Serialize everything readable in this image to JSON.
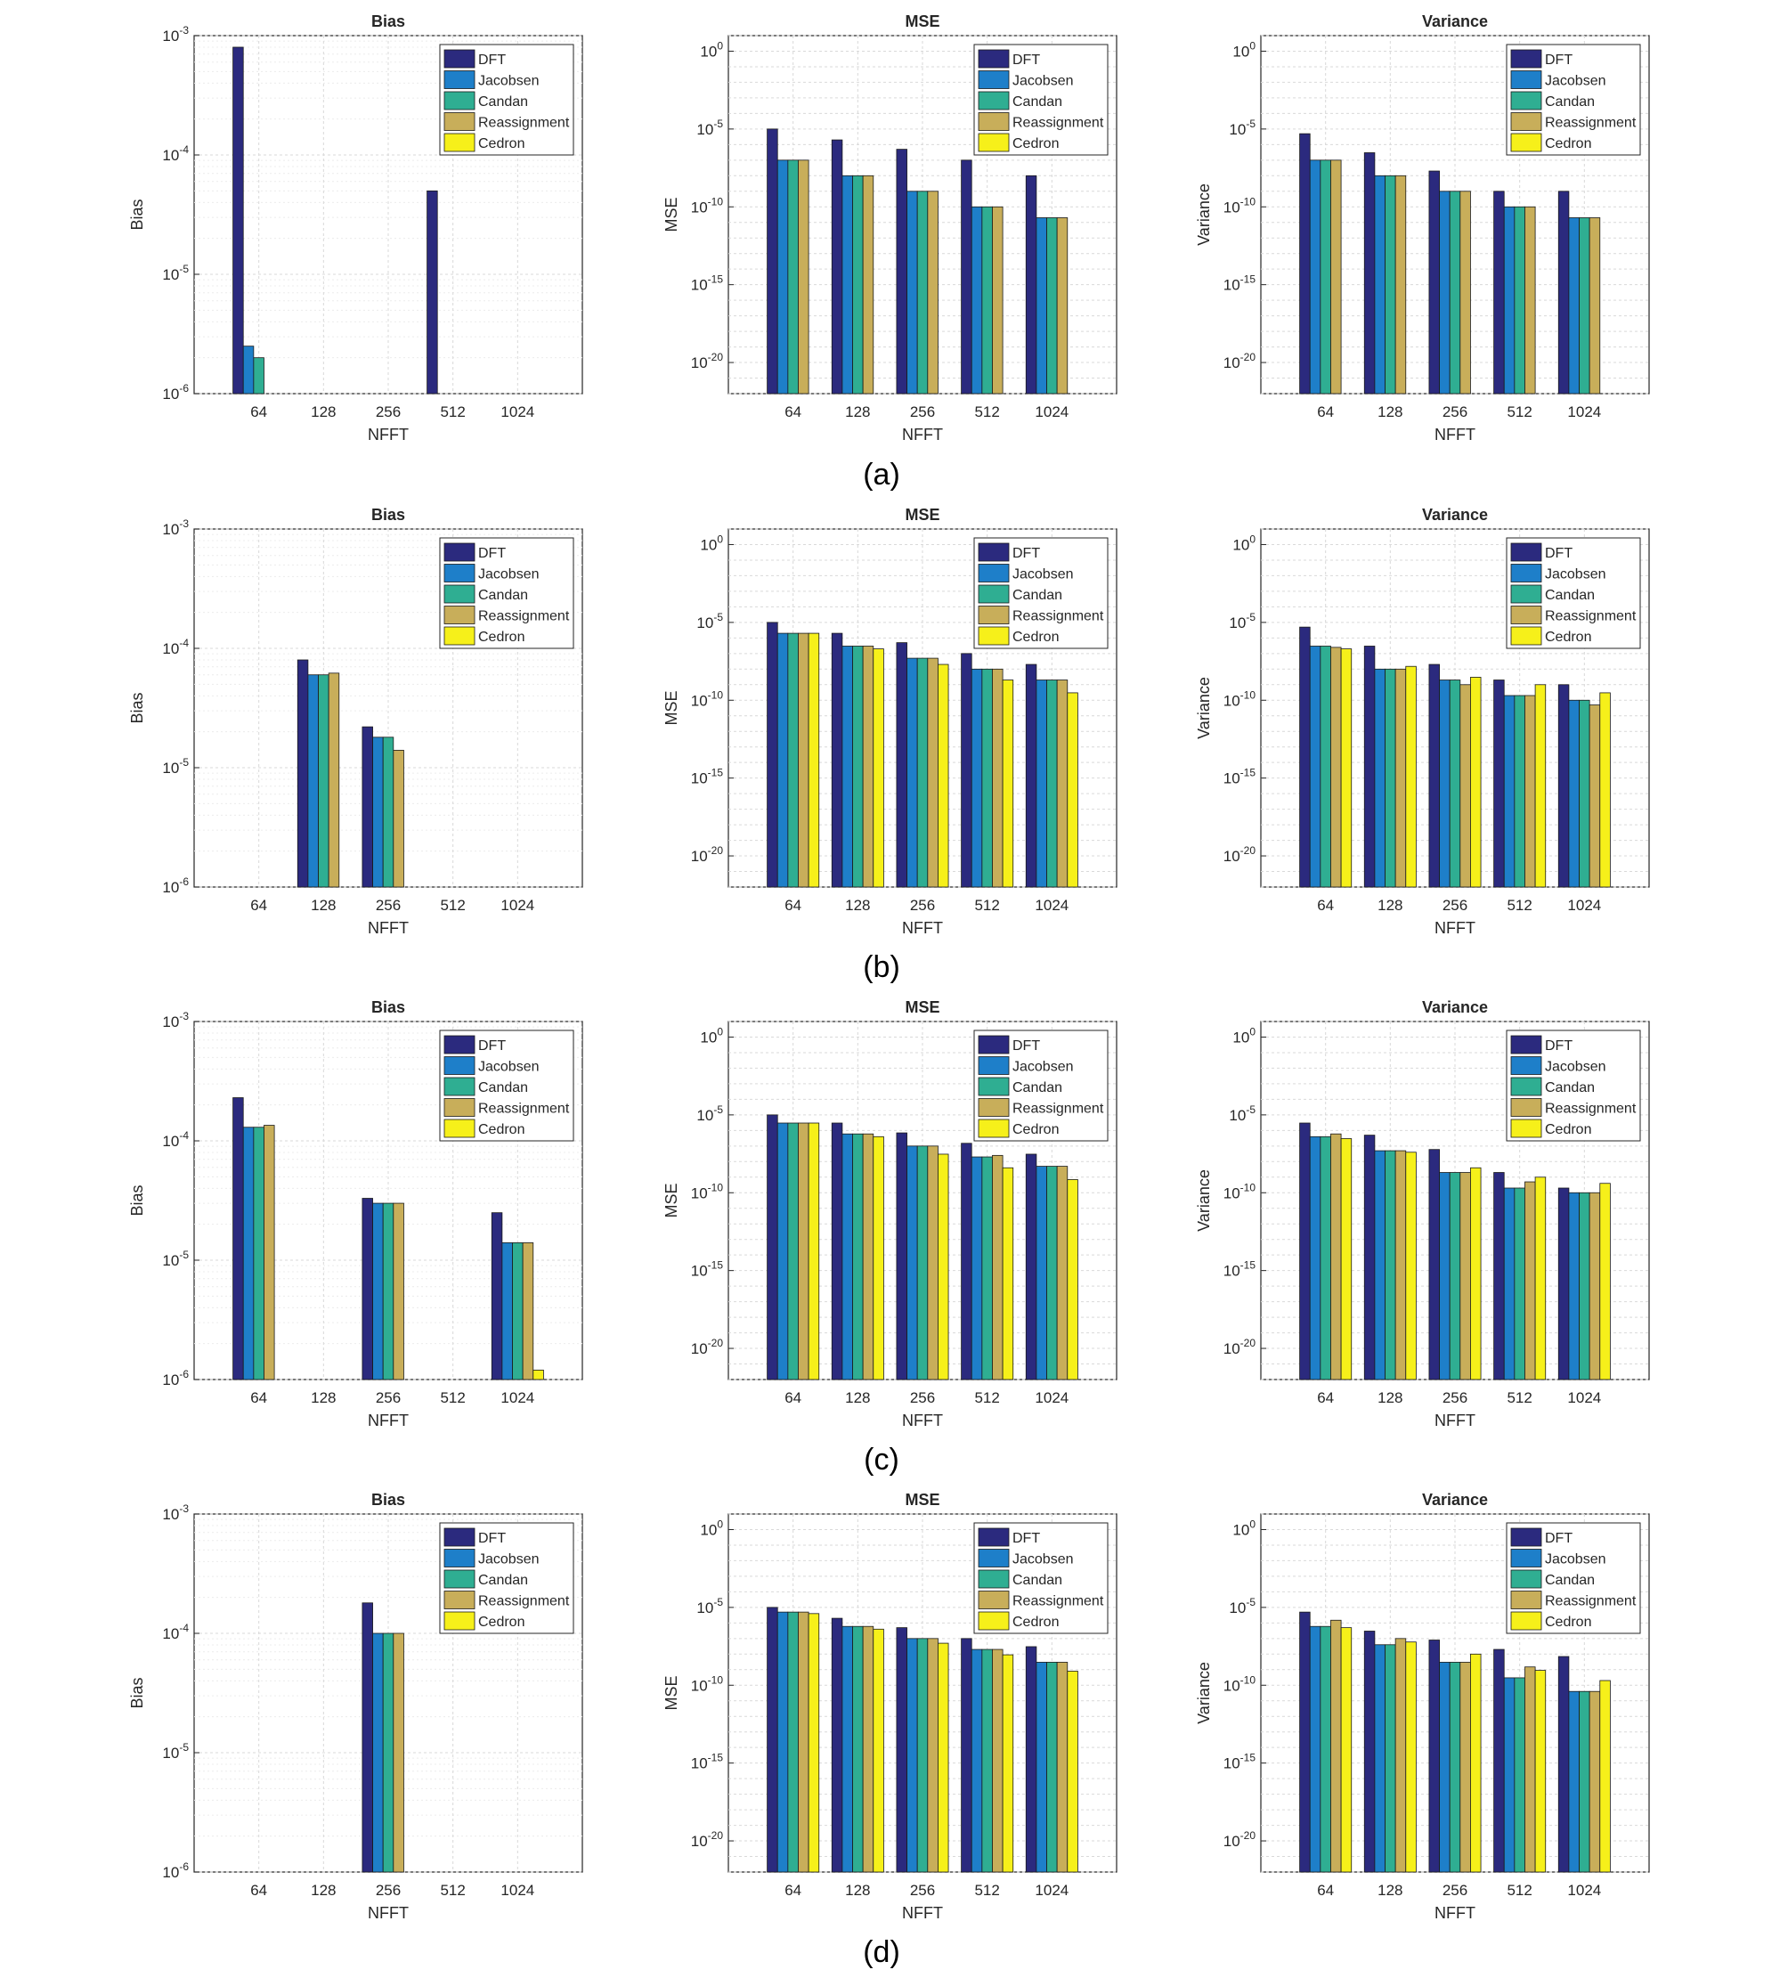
{
  "colors": {
    "DFT": "#2b2a7e",
    "Jacobsen": "#1e7fc9",
    "Candan": "#2fae92",
    "Reassignment": "#c8ae5a",
    "Cedron": "#f6f01a",
    "grid": "#d9d9d9",
    "axis": "#262626"
  },
  "legend_labels": [
    "DFT",
    "Jacobsen",
    "Candan",
    "Reassignment",
    "Cedron"
  ],
  "panel_labels": [
    "(a)",
    "(b)",
    "(c)",
    "(d)"
  ],
  "chart_data": [
    {
      "type": "bar",
      "panel": "(a)",
      "title": "Bias",
      "xlabel": "NFFT",
      "ylabel": "Bias",
      "scale": "log",
      "legend": "top-right",
      "grid": true,
      "categories": [
        "64",
        "128",
        "256",
        "512",
        "1024"
      ],
      "ylim": [
        1e-06,
        0.001
      ],
      "ytick_values": [
        1e-06,
        1e-05,
        0.0001,
        0.001
      ],
      "ytick_labels": [
        "10^-6",
        "10^-5",
        "10^-4",
        "10^-3"
      ],
      "series": [
        {
          "name": "DFT",
          "values": [
            0.0008,
            null,
            null,
            5e-05,
            null
          ]
        },
        {
          "name": "Jacobsen",
          "values": [
            2.5e-06,
            null,
            null,
            null,
            null
          ]
        },
        {
          "name": "Candan",
          "values": [
            2e-06,
            null,
            null,
            null,
            null
          ]
        },
        {
          "name": "Reassignment",
          "values": [
            null,
            null,
            null,
            null,
            null
          ]
        },
        {
          "name": "Cedron",
          "values": [
            null,
            null,
            null,
            null,
            null
          ]
        }
      ]
    },
    {
      "type": "bar",
      "panel": "(a)",
      "title": "MSE",
      "xlabel": "NFFT",
      "ylabel": "MSE",
      "scale": "log",
      "legend": "top-right",
      "grid": true,
      "categories": [
        "64",
        "128",
        "256",
        "512",
        "1024"
      ],
      "ylim": [
        1e-22,
        10.0
      ],
      "ytick_values": [
        1e-20,
        1e-15,
        1e-10,
        1e-05,
        1
      ],
      "ytick_labels": [
        "10^-20",
        "10^-15",
        "10^-10",
        "10^-5",
        "10^0"
      ],
      "series": [
        {
          "name": "DFT",
          "values": [
            1e-05,
            2e-06,
            5e-07,
            1e-07,
            1e-08
          ]
        },
        {
          "name": "Jacobsen",
          "values": [
            1e-07,
            1e-08,
            1e-09,
            1e-10,
            2e-11
          ]
        },
        {
          "name": "Candan",
          "values": [
            1e-07,
            1e-08,
            1e-09,
            1e-10,
            2e-11
          ]
        },
        {
          "name": "Reassignment",
          "values": [
            1e-07,
            1e-08,
            1e-09,
            1e-10,
            2e-11
          ]
        },
        {
          "name": "Cedron",
          "values": [
            null,
            null,
            null,
            null,
            null
          ]
        }
      ]
    },
    {
      "type": "bar",
      "panel": "(a)",
      "title": "Variance",
      "xlabel": "NFFT",
      "ylabel": "Variance",
      "scale": "log",
      "legend": "top-right",
      "grid": true,
      "categories": [
        "64",
        "128",
        "256",
        "512",
        "1024"
      ],
      "ylim": [
        1e-22,
        10.0
      ],
      "ytick_values": [
        1e-20,
        1e-15,
        1e-10,
        1e-05,
        1
      ],
      "ytick_labels": [
        "10^-20",
        "10^-15",
        "10^-10",
        "10^-5",
        "10^0"
      ],
      "series": [
        {
          "name": "DFT",
          "values": [
            5e-06,
            3e-07,
            2e-08,
            1e-09,
            1e-09
          ]
        },
        {
          "name": "Jacobsen",
          "values": [
            1e-07,
            1e-08,
            1e-09,
            1e-10,
            2e-11
          ]
        },
        {
          "name": "Candan",
          "values": [
            1e-07,
            1e-08,
            1e-09,
            1e-10,
            2e-11
          ]
        },
        {
          "name": "Reassignment",
          "values": [
            1e-07,
            1e-08,
            1e-09,
            1e-10,
            2e-11
          ]
        },
        {
          "name": "Cedron",
          "values": [
            null,
            null,
            null,
            null,
            null
          ]
        }
      ]
    },
    {
      "type": "bar",
      "panel": "(b)",
      "title": "Bias",
      "xlabel": "NFFT",
      "ylabel": "Bias",
      "scale": "log",
      "legend": "top-right",
      "grid": true,
      "categories": [
        "64",
        "128",
        "256",
        "512",
        "1024"
      ],
      "ylim": [
        1e-06,
        0.001
      ],
      "ytick_values": [
        1e-06,
        1e-05,
        0.0001,
        0.001
      ],
      "ytick_labels": [
        "10^-6",
        "10^-5",
        "10^-4",
        "10^-3"
      ],
      "series": [
        {
          "name": "DFT",
          "values": [
            null,
            8e-05,
            2.2e-05,
            null,
            null
          ]
        },
        {
          "name": "Jacobsen",
          "values": [
            null,
            6e-05,
            1.8e-05,
            null,
            null
          ]
        },
        {
          "name": "Candan",
          "values": [
            null,
            6e-05,
            1.8e-05,
            null,
            null
          ]
        },
        {
          "name": "Reassignment",
          "values": [
            null,
            6.2e-05,
            1.4e-05,
            null,
            null
          ]
        },
        {
          "name": "Cedron",
          "values": [
            null,
            null,
            null,
            null,
            null
          ]
        }
      ]
    },
    {
      "type": "bar",
      "panel": "(b)",
      "title": "MSE",
      "xlabel": "NFFT",
      "ylabel": "MSE",
      "scale": "log",
      "legend": "top-right",
      "grid": true,
      "categories": [
        "64",
        "128",
        "256",
        "512",
        "1024"
      ],
      "ylim": [
        1e-22,
        10.0
      ],
      "ytick_values": [
        1e-20,
        1e-15,
        1e-10,
        1e-05,
        1
      ],
      "ytick_labels": [
        "10^-20",
        "10^-15",
        "10^-10",
        "10^-5",
        "10^0"
      ],
      "series": [
        {
          "name": "DFT",
          "values": [
            1e-05,
            2e-06,
            5e-07,
            1e-07,
            2e-08
          ]
        },
        {
          "name": "Jacobsen",
          "values": [
            2e-06,
            3e-07,
            5e-08,
            1e-08,
            2e-09
          ]
        },
        {
          "name": "Candan",
          "values": [
            2e-06,
            3e-07,
            5e-08,
            1e-08,
            2e-09
          ]
        },
        {
          "name": "Reassignment",
          "values": [
            2e-06,
            3e-07,
            5e-08,
            1e-08,
            2e-09
          ]
        },
        {
          "name": "Cedron",
          "values": [
            2e-06,
            2e-07,
            2e-08,
            2e-09,
            3e-10
          ]
        }
      ]
    },
    {
      "type": "bar",
      "panel": "(b)",
      "title": "Variance",
      "xlabel": "NFFT",
      "ylabel": "Variance",
      "scale": "log",
      "legend": "top-right",
      "grid": true,
      "categories": [
        "64",
        "128",
        "256",
        "512",
        "1024"
      ],
      "ylim": [
        1e-22,
        10.0
      ],
      "ytick_values": [
        1e-20,
        1e-15,
        1e-10,
        1e-05,
        1
      ],
      "ytick_labels": [
        "10^-20",
        "10^-15",
        "10^-10",
        "10^-5",
        "10^0"
      ],
      "series": [
        {
          "name": "DFT",
          "values": [
            5e-06,
            3e-07,
            2e-08,
            2e-09,
            1e-09
          ]
        },
        {
          "name": "Jacobsen",
          "values": [
            3e-07,
            1e-08,
            2e-09,
            2e-10,
            1e-10
          ]
        },
        {
          "name": "Candan",
          "values": [
            3e-07,
            1e-08,
            2e-09,
            2e-10,
            1e-10
          ]
        },
        {
          "name": "Reassignment",
          "values": [
            2.5e-07,
            1e-08,
            1e-09,
            2e-10,
            5e-11
          ]
        },
        {
          "name": "Cedron",
          "values": [
            2e-07,
            1.5e-08,
            3e-09,
            1e-09,
            3e-10
          ]
        }
      ]
    },
    {
      "type": "bar",
      "panel": "(c)",
      "title": "Bias",
      "xlabel": "NFFT",
      "ylabel": "Bias",
      "scale": "log",
      "legend": "top-right",
      "grid": true,
      "categories": [
        "64",
        "128",
        "256",
        "512",
        "1024"
      ],
      "ylim": [
        1e-06,
        0.001
      ],
      "ytick_values": [
        1e-06,
        1e-05,
        0.0001,
        0.001
      ],
      "ytick_labels": [
        "10^-6",
        "10^-5",
        "10^-4",
        "10^-3"
      ],
      "series": [
        {
          "name": "DFT",
          "values": [
            0.00023,
            null,
            3.3e-05,
            null,
            2.5e-05
          ]
        },
        {
          "name": "Jacobsen",
          "values": [
            0.00013,
            null,
            3e-05,
            null,
            1.4e-05
          ]
        },
        {
          "name": "Candan",
          "values": [
            0.00013,
            null,
            3e-05,
            null,
            1.4e-05
          ]
        },
        {
          "name": "Reassignment",
          "values": [
            0.000135,
            null,
            3e-05,
            null,
            1.4e-05
          ]
        },
        {
          "name": "Cedron",
          "values": [
            null,
            null,
            null,
            null,
            1.2e-06
          ]
        }
      ]
    },
    {
      "type": "bar",
      "panel": "(c)",
      "title": "MSE",
      "xlabel": "NFFT",
      "ylabel": "MSE",
      "scale": "log",
      "legend": "top-right",
      "grid": true,
      "categories": [
        "64",
        "128",
        "256",
        "512",
        "1024"
      ],
      "ylim": [
        1e-22,
        10.0
      ],
      "ytick_values": [
        1e-20,
        1e-15,
        1e-10,
        1e-05,
        1
      ],
      "ytick_labels": [
        "10^-20",
        "10^-15",
        "10^-10",
        "10^-5",
        "10^0"
      ],
      "series": [
        {
          "name": "DFT",
          "values": [
            1e-05,
            3e-06,
            7e-07,
            1.5e-07,
            3e-08
          ]
        },
        {
          "name": "Jacobsen",
          "values": [
            3e-06,
            6e-07,
            1e-07,
            2e-08,
            5e-09
          ]
        },
        {
          "name": "Candan",
          "values": [
            3e-06,
            6e-07,
            1e-07,
            2e-08,
            5e-09
          ]
        },
        {
          "name": "Reassignment",
          "values": [
            3e-06,
            6e-07,
            1e-07,
            2.5e-08,
            5e-09
          ]
        },
        {
          "name": "Cedron",
          "values": [
            3e-06,
            4e-07,
            3e-08,
            4e-09,
            7e-10
          ]
        }
      ]
    },
    {
      "type": "bar",
      "panel": "(c)",
      "title": "Variance",
      "xlabel": "NFFT",
      "ylabel": "Variance",
      "scale": "log",
      "legend": "top-right",
      "grid": true,
      "categories": [
        "64",
        "128",
        "256",
        "512",
        "1024"
      ],
      "ylim": [
        1e-22,
        10.0
      ],
      "ytick_values": [
        1e-20,
        1e-15,
        1e-10,
        1e-05,
        1
      ],
      "ytick_labels": [
        "10^-20",
        "10^-15",
        "10^-10",
        "10^-5",
        "10^0"
      ],
      "series": [
        {
          "name": "DFT",
          "values": [
            3e-06,
            5e-07,
            6e-08,
            2e-09,
            2e-10
          ]
        },
        {
          "name": "Jacobsen",
          "values": [
            4e-07,
            5e-08,
            2e-09,
            2e-10,
            1e-10
          ]
        },
        {
          "name": "Candan",
          "values": [
            4e-07,
            5e-08,
            2e-09,
            2e-10,
            1e-10
          ]
        },
        {
          "name": "Reassignment",
          "values": [
            6e-07,
            5e-08,
            2e-09,
            5e-10,
            1e-10
          ]
        },
        {
          "name": "Cedron",
          "values": [
            3e-07,
            4e-08,
            4e-09,
            1e-09,
            4e-10
          ]
        }
      ]
    },
    {
      "type": "bar",
      "panel": "(d)",
      "title": "Bias",
      "xlabel": "NFFT",
      "ylabel": "Bias",
      "scale": "log",
      "legend": "top-right",
      "grid": true,
      "categories": [
        "64",
        "128",
        "256",
        "512",
        "1024"
      ],
      "ylim": [
        1e-06,
        0.001
      ],
      "ytick_values": [
        1e-06,
        1e-05,
        0.0001,
        0.001
      ],
      "ytick_labels": [
        "10^-6",
        "10^-5",
        "10^-4",
        "10^-3"
      ],
      "series": [
        {
          "name": "DFT",
          "values": [
            null,
            null,
            0.00018,
            null,
            null
          ]
        },
        {
          "name": "Jacobsen",
          "values": [
            null,
            null,
            0.0001,
            null,
            null
          ]
        },
        {
          "name": "Candan",
          "values": [
            null,
            null,
            0.0001,
            null,
            null
          ]
        },
        {
          "name": "Reassignment",
          "values": [
            null,
            null,
            0.0001,
            null,
            null
          ]
        },
        {
          "name": "Cedron",
          "values": [
            null,
            null,
            null,
            null,
            null
          ]
        }
      ]
    },
    {
      "type": "bar",
      "panel": "(d)",
      "title": "MSE",
      "xlabel": "NFFT",
      "ylabel": "MSE",
      "scale": "log",
      "legend": "top-right",
      "grid": true,
      "categories": [
        "64",
        "128",
        "256",
        "512",
        "1024"
      ],
      "ylim": [
        1e-22,
        10.0
      ],
      "ytick_values": [
        1e-20,
        1e-15,
        1e-10,
        1e-05,
        1
      ],
      "ytick_labels": [
        "10^-20",
        "10^-15",
        "10^-10",
        "10^-5",
        "10^0"
      ],
      "series": [
        {
          "name": "DFT",
          "values": [
            1e-05,
            2e-06,
            5e-07,
            1e-07,
            3e-08
          ]
        },
        {
          "name": "Jacobsen",
          "values": [
            5e-06,
            6e-07,
            1e-07,
            2e-08,
            3e-09
          ]
        },
        {
          "name": "Candan",
          "values": [
            5e-06,
            6e-07,
            1e-07,
            2e-08,
            3e-09
          ]
        },
        {
          "name": "Reassignment",
          "values": [
            5e-06,
            6e-07,
            1e-07,
            2e-08,
            3e-09
          ]
        },
        {
          "name": "Cedron",
          "values": [
            4e-06,
            4e-07,
            5e-08,
            9e-09,
            8e-10
          ]
        }
      ]
    },
    {
      "type": "bar",
      "panel": "(d)",
      "title": "Variance",
      "xlabel": "NFFT",
      "ylabel": "Variance",
      "scale": "log",
      "legend": "top-right",
      "grid": true,
      "categories": [
        "64",
        "128",
        "256",
        "512",
        "1024"
      ],
      "ylim": [
        1e-22,
        10.0
      ],
      "ytick_values": [
        1e-20,
        1e-15,
        1e-10,
        1e-05,
        1
      ],
      "ytick_labels": [
        "10^-20",
        "10^-15",
        "10^-10",
        "10^-5",
        "10^0"
      ],
      "series": [
        {
          "name": "DFT",
          "values": [
            5e-06,
            3e-07,
            8e-08,
            2e-08,
            7e-09
          ]
        },
        {
          "name": "Jacobsen",
          "values": [
            6e-07,
            4e-08,
            3e-09,
            3e-10,
            4e-11
          ]
        },
        {
          "name": "Candan",
          "values": [
            6e-07,
            4e-08,
            3e-09,
            3e-10,
            4e-11
          ]
        },
        {
          "name": "Reassignment",
          "values": [
            1.5e-06,
            1e-07,
            3e-09,
            1.5e-09,
            4e-11
          ]
        },
        {
          "name": "Cedron",
          "values": [
            5e-07,
            6e-08,
            1e-08,
            9e-10,
            2e-10
          ]
        }
      ]
    }
  ]
}
